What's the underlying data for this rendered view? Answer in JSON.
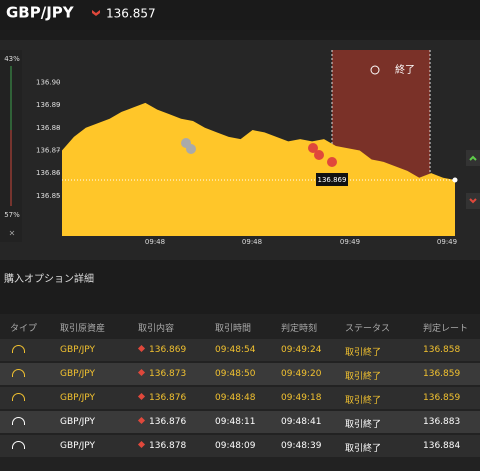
{
  "header": {
    "title": "GBP/JPY",
    "price": "136.857"
  },
  "chart": {
    "type": "area",
    "color": "#ffc629",
    "values": [
      136.87,
      136.876,
      136.88,
      136.882,
      136.884,
      136.887,
      136.889,
      136.891,
      136.888,
      136.886,
      136.884,
      136.883,
      136.88,
      136.878,
      136.876,
      136.875,
      136.879,
      136.878,
      136.876,
      136.874,
      136.875,
      136.874,
      136.875,
      136.872,
      136.871,
      136.87,
      136.866,
      136.865,
      136.863,
      136.861,
      136.858,
      136.86,
      136.858,
      136.857
    ],
    "ylim": [
      136.8323,
      136.9187
    ],
    "yticks": [
      {
        "value": 136.9,
        "label": "136.90"
      },
      {
        "value": 136.89,
        "label": "136.89"
      },
      {
        "value": 136.88,
        "label": "136.88"
      },
      {
        "value": 136.87,
        "label": "136.87"
      },
      {
        "value": 136.86,
        "label": "136.86"
      },
      {
        "value": 136.85,
        "label": "136.85"
      }
    ],
    "xlabels": [
      "09:48",
      "09:48",
      "09:49",
      "09:49"
    ],
    "current_label": "136.869",
    "end_label": "終了",
    "up_pct": "43%",
    "down_pct": "57%",
    "close": "×"
  },
  "section_title": "購入オプション詳細",
  "table": {
    "headers": [
      "タイプ",
      "取引原資産",
      "取引内容",
      "取引時間",
      "判定時刻",
      "ステータス",
      "判定レート"
    ],
    "rows": [
      [
        "GBP/JPY",
        "136.869",
        "09:48:54",
        "09:49:24",
        "取引終了",
        "136.858"
      ],
      [
        "GBP/JPY",
        "136.873",
        "09:48:50",
        "09:49:20",
        "取引終了",
        "136.859"
      ],
      [
        "GBP/JPY",
        "136.876",
        "09:48:48",
        "09:49:18",
        "取引終了",
        "136.859"
      ],
      [
        "GBP/JPY",
        "136.876",
        "09:48:11",
        "09:48:41",
        "取引終了",
        "136.883"
      ],
      [
        "GBP/JPY",
        "136.878",
        "09:48:09",
        "09:48:39",
        "取引終了",
        "136.884"
      ]
    ]
  }
}
